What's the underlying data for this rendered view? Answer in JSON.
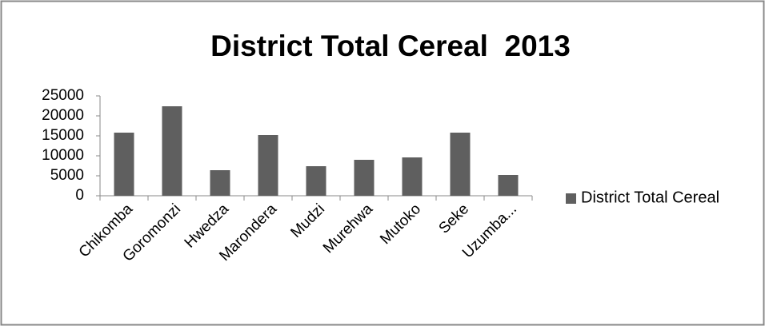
{
  "chart_data": {
    "type": "bar",
    "title": "District Total Cereal  2013",
    "categories": [
      "Chikomba",
      "Goromonzi",
      "Hwedza",
      "Marondera",
      "Mudzi",
      "Murehwa",
      "Mutoko",
      "Seke",
      "Uzumba..."
    ],
    "series": [
      {
        "name": "District Total Cereal",
        "color": "#5f5f5f",
        "values": [
          15800,
          22400,
          6400,
          15200,
          7400,
          9000,
          9600,
          15800,
          5200
        ]
      }
    ],
    "ylim": [
      0,
      25000
    ],
    "yticks": [
      0,
      5000,
      10000,
      15000,
      20000,
      25000
    ],
    "grid": false,
    "legend": "right"
  }
}
